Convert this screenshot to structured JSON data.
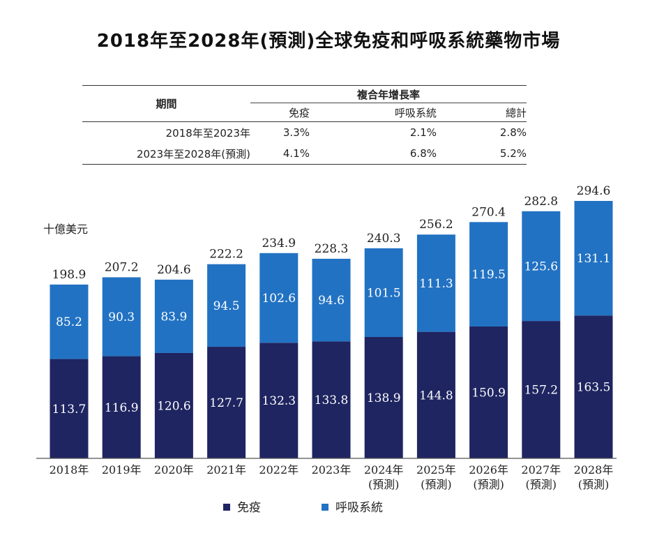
{
  "title": "2018年至2028年(預測)全球免疫和呼吸系統藥物市場",
  "cagr_table": {
    "period_header": "期間",
    "group_header": "複合年增長率",
    "columns": [
      "免疫",
      "呼吸系統",
      "總計"
    ],
    "rows": [
      {
        "period": "2018年至2023年",
        "values": [
          "3.3%",
          "2.1%",
          "2.8%"
        ]
      },
      {
        "period": "2023年至2028年(預測)",
        "values": [
          "4.1%",
          "6.8%",
          "5.2%"
        ]
      }
    ]
  },
  "chart_data": {
    "type": "bar",
    "stacked": true,
    "unit_label": "十億美元",
    "categories": [
      [
        "2018年"
      ],
      [
        "2019年"
      ],
      [
        "2020年"
      ],
      [
        "2021年"
      ],
      [
        "2022年"
      ],
      [
        "2023年"
      ],
      [
        "2024年",
        "(預測)"
      ],
      [
        "2025年",
        "(預測)"
      ],
      [
        "2026年",
        "(預測)"
      ],
      [
        "2027年",
        "(預測)"
      ],
      [
        "2028年",
        "(預測)"
      ]
    ],
    "series": [
      {
        "name": "免疫",
        "color": "#1f2561",
        "values": [
          113.7,
          116.9,
          120.6,
          127.7,
          132.3,
          133.8,
          138.9,
          144.8,
          150.9,
          157.2,
          163.5
        ]
      },
      {
        "name": "呼吸系統",
        "color": "#2272c3",
        "values": [
          85.2,
          90.3,
          83.9,
          94.5,
          102.6,
          94.6,
          101.5,
          111.3,
          119.5,
          125.6,
          131.1
        ]
      }
    ],
    "totals": [
      198.9,
      207.2,
      204.6,
      222.2,
      234.9,
      228.3,
      240.3,
      256.2,
      270.4,
      282.8,
      294.6
    ],
    "ylim": [
      0,
      294.6
    ],
    "grid": false,
    "legend_position": "bottom"
  }
}
